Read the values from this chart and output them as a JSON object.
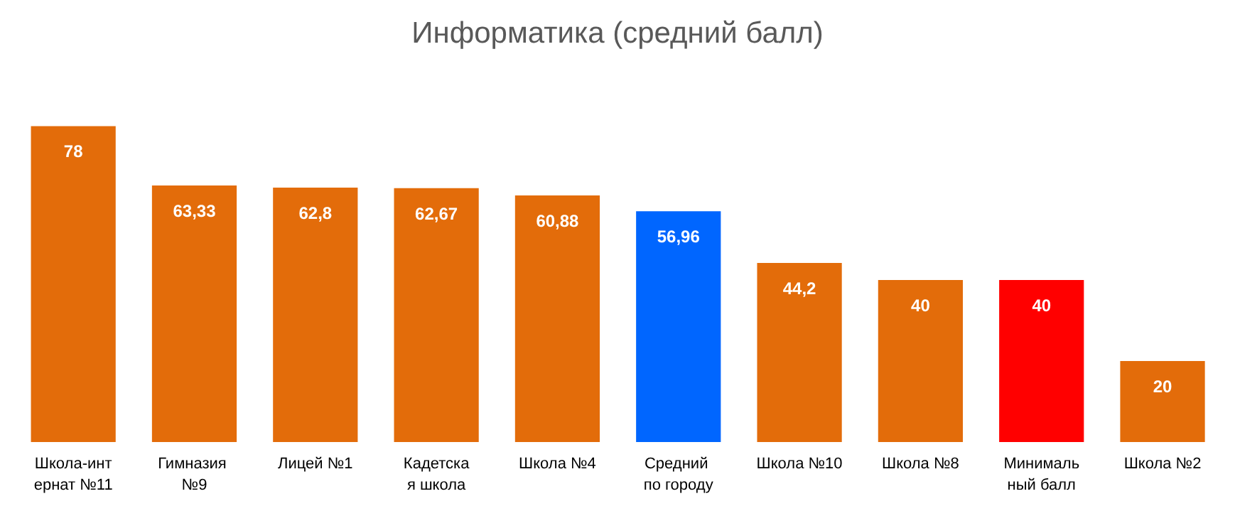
{
  "chart_data": {
    "type": "bar",
    "title": "Информатика (средний балл)",
    "categories": [
      "Школа-интернат №11",
      "Гимназия №9",
      "Лицей №1",
      "Кадетская школа",
      "Школа №4",
      "Средний по городу",
      "Школа №10",
      "Школа №8",
      "Минимальный балл",
      "Школа №2"
    ],
    "values": [
      78,
      63.33,
      62.8,
      62.67,
      60.88,
      56.96,
      44.2,
      40,
      40,
      20
    ],
    "colors": [
      "#e36c0a",
      "#e36c0a",
      "#e36c0a",
      "#e36c0a",
      "#e36c0a",
      "#0066ff",
      "#e36c0a",
      "#e36c0a",
      "#ff0000",
      "#e36c0a"
    ],
    "value_labels": [
      "78",
      "63,33",
      "62,8",
      "62,67",
      "60,88",
      "56,96",
      "44,2",
      "40",
      "40",
      "20"
    ],
    "tick_labels": "x"
  }
}
